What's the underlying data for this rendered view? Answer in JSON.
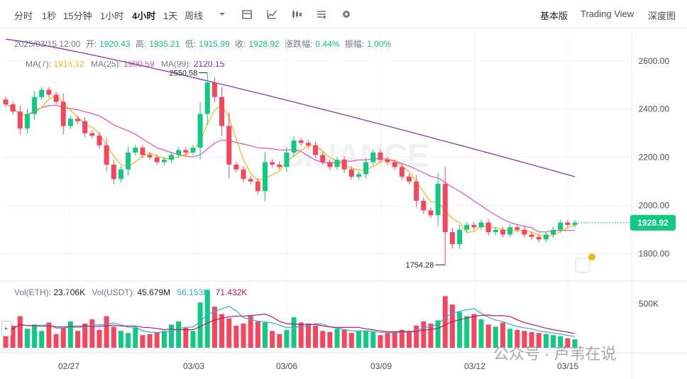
{
  "toolbar": {
    "intervals": [
      "分时",
      "1秒",
      "15分钟",
      "1小时",
      "4小时",
      "1天",
      "周线"
    ],
    "active_interval": "4小时",
    "views": [
      "基本版",
      "Trading View",
      "深度图"
    ],
    "active_view": "基本版"
  },
  "ohlc": {
    "datetime": "2025/03/15 12:00",
    "open_label": "开:",
    "open": "1920.43",
    "high_label": "高:",
    "high": "1935.21",
    "low_label": "低:",
    "low": "1915.99",
    "close_label": "收:",
    "close": "1928.92",
    "change_label": "涨跌幅:",
    "change": "0.44%",
    "amplitude_label": "振幅:",
    "amplitude": "1.00%"
  },
  "ma": {
    "ma7_label": "MA(7):",
    "ma7": "1916.12",
    "ma25_label": "MA(25):",
    "ma25": "1900.59",
    "ma99_label": "MA(99):",
    "ma99": "2120.15"
  },
  "volume": {
    "eth_label": "Vol(ETH):",
    "eth": "23.706K",
    "usdt_label": "Vol(USDT):",
    "usdt": "45.679M",
    "ma1": "56.153K",
    "ma2": "71.432K"
  },
  "watermark": "公众号 · 芦苇在说",
  "colors": {
    "up": "#0ecb81",
    "down": "#f6465d",
    "ma7": "#f0b90b",
    "ma25": "#e64ebd",
    "ma99": "#7b2d9c",
    "vol_ma1": "#2ab0d8",
    "vol_ma2": "#c2185b"
  },
  "chart_data": {
    "type": "candlestick",
    "symbol_interval": "4h",
    "price_axis_ticks": [
      "2600.00",
      "2400.00",
      "2200.00",
      "2000.00",
      "1800.00"
    ],
    "volume_axis_ticks": [
      "500K"
    ],
    "x_tick_labels": [
      "02/27",
      "03/03",
      "03/06",
      "03/09",
      "03/12",
      "03/15"
    ],
    "current_price_label": "1928.92",
    "annotations": {
      "high": "2550.58",
      "low": "1754.28"
    },
    "ylim": [
      1690,
      2720
    ],
    "close_series": [
      2420,
      2390,
      2320,
      2380,
      2450,
      2480,
      2460,
      2430,
      2330,
      2360,
      2350,
      2300,
      2290,
      2250,
      2170,
      2110,
      2150,
      2220,
      2240,
      2210,
      2200,
      2180,
      2190,
      2210,
      2230,
      2220,
      2240,
      2380,
      2510,
      2450,
      2330,
      2170,
      2150,
      2110,
      2100,
      2060,
      2180,
      2170,
      2160,
      2220,
      2270,
      2260,
      2250,
      2210,
      2180,
      2160,
      2190,
      2150,
      2120,
      2130,
      2180,
      2220,
      2190,
      2180,
      2160,
      2120,
      2100,
      2020,
      1980,
      1960,
      2090,
      1890,
      1840,
      1900,
      1920,
      1910,
      1930,
      1890,
      1900,
      1880,
      1910,
      1900,
      1880,
      1870,
      1860,
      1880,
      1900,
      1930,
      1920,
      1929
    ],
    "volume_series": [
      150,
      210,
      300,
      180,
      220,
      160,
      240,
      130,
      190,
      250,
      160,
      230,
      270,
      170,
      300,
      200,
      160,
      140,
      190,
      120,
      130,
      150,
      160,
      220,
      250,
      190,
      160,
      430,
      550,
      390,
      320,
      280,
      210,
      230,
      300,
      250,
      240,
      160,
      130,
      170,
      290,
      240,
      230,
      210,
      160,
      150,
      180,
      170,
      140,
      160,
      160,
      150,
      120,
      140,
      150,
      170,
      160,
      210,
      250,
      230,
      260,
      490,
      410,
      340,
      300,
      320,
      270,
      220,
      200,
      240,
      180,
      170,
      160,
      150,
      140,
      130,
      120,
      110,
      90,
      80
    ]
  }
}
